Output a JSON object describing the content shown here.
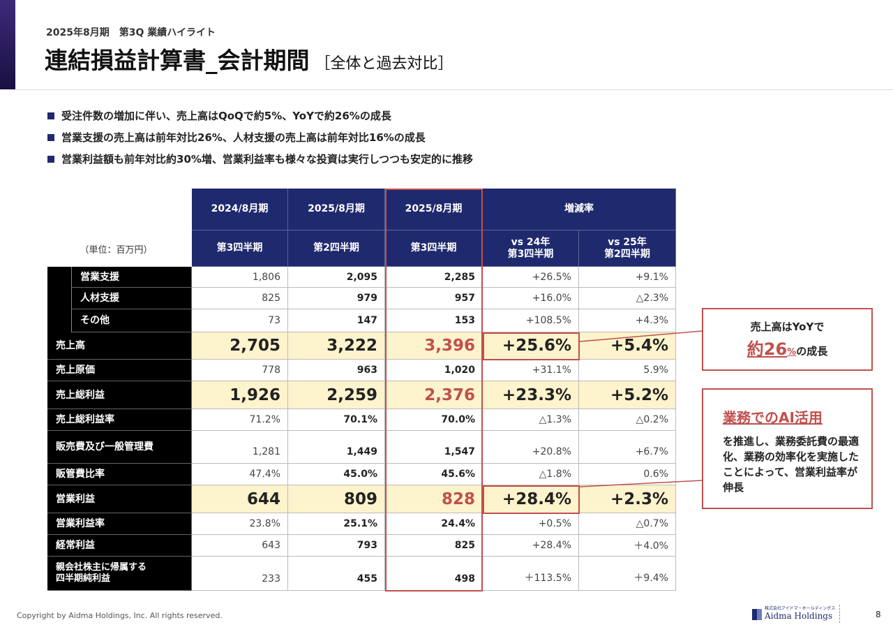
{
  "header": {
    "subtitle": "2025年8月期　第3Q 業績ハイライト",
    "title": "連結損益計算書_会計期間",
    "title_note": "［全体と過去対比］"
  },
  "bullets": [
    "受注件数の増加に伴い、売上高はQoQで約5%、YoYで約26%の成長",
    "営業支援の売上高は前年対比26%、人材支援の売上高は前年対比16%の成長",
    "営業利益額も前年対比約30%増、営業利益率も様々な投資は実行しつつも安定的に推移"
  ],
  "table": {
    "unit": "（単位：百万円）",
    "header_top": [
      "2024/8月期",
      "2025/8月期",
      "2025/8月期",
      "増減率"
    ],
    "header_sub": [
      "第3四半期",
      "第2四半期",
      "第3四半期",
      "vs 24年\n第3四半期",
      "vs 25年\n第2四半期"
    ],
    "rows": [
      {
        "label": "営業支援",
        "cells": [
          "1,806",
          "2,095",
          "2,285",
          "+26.5%",
          "+9.1%"
        ]
      },
      {
        "label": "人材支援",
        "cells": [
          "825",
          "979",
          "957",
          "+16.0%",
          "△2.3%"
        ]
      },
      {
        "label": "その他",
        "cells": [
          "73",
          "147",
          "153",
          "+108.5%",
          "+4.3%"
        ]
      },
      {
        "label": "売上高",
        "cells": [
          "2,705",
          "3,222",
          "3,396",
          "+25.6%",
          "+5.4%"
        ]
      },
      {
        "label": "売上原価",
        "cells": [
          "778",
          "963",
          "1,020",
          "+31.1%",
          "5.9%"
        ]
      },
      {
        "label": "売上総利益",
        "cells": [
          "1,926",
          "2,259",
          "2,376",
          "+23.3%",
          "+5.2%"
        ]
      },
      {
        "label": "売上総利益率",
        "cells": [
          "71.2%",
          "70.1%",
          "70.0%",
          "△1.3%",
          "△0.2%"
        ]
      },
      {
        "label": "販売費及び一般管理費",
        "cells": [
          "1,281",
          "1,449",
          "1,547",
          "+20.8%",
          "+6.7%"
        ]
      },
      {
        "label": "販管費比率",
        "cells": [
          "47.4%",
          "45.0%",
          "45.6%",
          "△1.8%",
          "0.6%"
        ]
      },
      {
        "label": "営業利益",
        "cells": [
          "644",
          "809",
          "828",
          "+28.4%",
          "+2.3%"
        ]
      },
      {
        "label": "営業利益率",
        "cells": [
          "23.8%",
          "25.1%",
          "24.4%",
          "+0.5%",
          "△0.7%"
        ]
      },
      {
        "label": "経常利益",
        "cells": [
          "643",
          "793",
          "825",
          "+28.4%",
          "＋4.0%"
        ]
      },
      {
        "label": "親会社株主に帰属する\n四半期純利益",
        "cells": [
          "233",
          "455",
          "498",
          "＋113.5%",
          "＋9.4%"
        ]
      }
    ]
  },
  "callouts": [
    {
      "text": "売上高はYoYで",
      "emphasis": "約26",
      "unit": "%",
      "rest": "の成長"
    },
    {
      "heading": "業務でのAI活用",
      "body": "を推進し、業務委託費の最適化、業務の効率化を実施したことによって、営業利益率が伸長"
    }
  ],
  "footer": {
    "copyright": "Copyright by Aidma Holdings, Inc. All rights reserved.",
    "logo_small": "株式会社アイドマ・ホールディングス",
    "logo": "Aidma Holdings",
    "page": "8"
  }
}
